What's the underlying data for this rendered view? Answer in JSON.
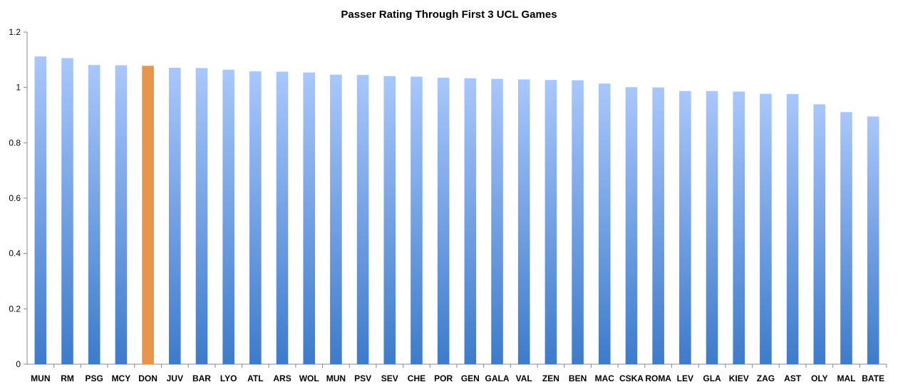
{
  "chart_data": {
    "type": "bar",
    "title": "Passer Rating Through First 3 UCL Games",
    "xlabel": "",
    "ylabel": "",
    "ylim": [
      0,
      1.2
    ],
    "yticks": [
      "0",
      "0.2",
      "0.4",
      "0.6",
      "0.8",
      "1",
      "1.2"
    ],
    "grid": false,
    "legend": "none",
    "categories": [
      "MUN",
      "RM",
      "PSG",
      "MCY",
      "DON",
      "JUV",
      "BAR",
      "LYO",
      "ATL",
      "ARS",
      "WOL",
      "MUN",
      "PSV",
      "SEV",
      "CHE",
      "POR",
      "GEN",
      "GALA",
      "VAL",
      "ZEN",
      "BEN",
      "MAC",
      "CSKA",
      "ROMA",
      "LEV",
      "GLA",
      "KIEV",
      "ZAG",
      "AST",
      "OLY",
      "MAL",
      "BATE"
    ],
    "values": [
      1.112,
      1.106,
      1.081,
      1.08,
      1.078,
      1.071,
      1.07,
      1.064,
      1.058,
      1.057,
      1.054,
      1.046,
      1.045,
      1.041,
      1.039,
      1.035,
      1.033,
      1.031,
      1.029,
      1.027,
      1.026,
      1.014,
      1.001,
      1.0,
      0.987,
      0.987,
      0.985,
      0.977,
      0.976,
      0.939,
      0.911,
      0.895
    ],
    "highlight_category_index": 4,
    "colors": {
      "bar_top": "#a9c7fb",
      "bar_bottom": "#3d7bcb",
      "highlight": "#e8954a",
      "axis": "#888888"
    }
  }
}
